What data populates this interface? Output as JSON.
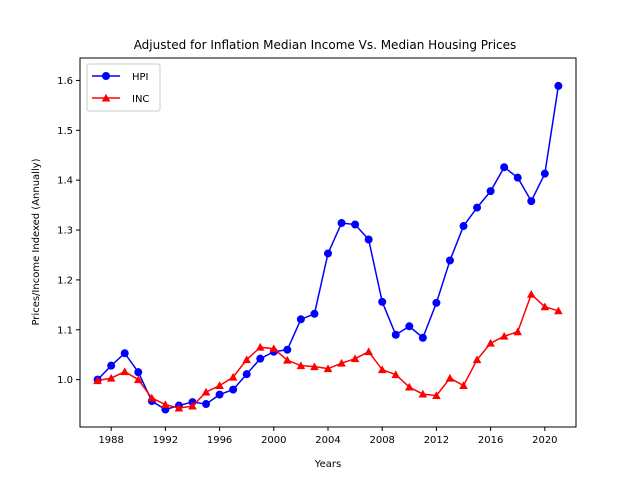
{
  "chart_data": {
    "type": "line",
    "title": "Adjusted for Inflation Median Income Vs. Median Housing Prices",
    "xlabel": "Years",
    "ylabel": "Prices/Income Indexed (Annually)",
    "xlim": [
      1985.7,
      2022.3
    ],
    "ylim": [
      0.905,
      1.645
    ],
    "x_ticks": [
      1988,
      1992,
      1996,
      2000,
      2004,
      2008,
      2012,
      2016,
      2020
    ],
    "y_ticks": [
      1.0,
      1.1,
      1.2,
      1.3,
      1.4,
      1.5,
      1.6
    ],
    "grid": false,
    "legend_position": "top-left",
    "x": [
      1987,
      1988,
      1989,
      1990,
      1991,
      1992,
      1993,
      1994,
      1995,
      1996,
      1997,
      1998,
      1999,
      2000,
      2001,
      2002,
      2003,
      2004,
      2005,
      2006,
      2007,
      2008,
      2009,
      2010,
      2011,
      2012,
      2013,
      2014,
      2015,
      2016,
      2017,
      2018,
      2019,
      2020,
      2021
    ],
    "series": [
      {
        "name": "HPI",
        "color": "#0000ff",
        "marker": "circle",
        "values": [
          1.0,
          1.028,
          1.053,
          1.015,
          0.957,
          0.94,
          0.948,
          0.955,
          0.951,
          0.97,
          0.98,
          1.011,
          1.042,
          1.056,
          1.06,
          1.121,
          1.132,
          1.253,
          1.314,
          1.311,
          1.281,
          1.156,
          1.09,
          1.107,
          1.084,
          1.154,
          1.239,
          1.308,
          1.345,
          1.378,
          1.426,
          1.405,
          1.358,
          1.413,
          1.589
        ]
      },
      {
        "name": "INC",
        "color": "#ff0000",
        "marker": "triangle",
        "values": [
          0.998,
          1.003,
          1.016,
          1.0,
          0.963,
          0.95,
          0.943,
          0.947,
          0.975,
          0.988,
          1.005,
          1.04,
          1.065,
          1.062,
          1.039,
          1.028,
          1.026,
          1.022,
          1.033,
          1.042,
          1.056,
          1.02,
          1.01,
          0.985,
          0.971,
          0.968,
          1.003,
          0.988,
          1.04,
          1.073,
          1.087,
          1.096,
          1.171,
          1.146,
          1.138
        ]
      }
    ]
  }
}
